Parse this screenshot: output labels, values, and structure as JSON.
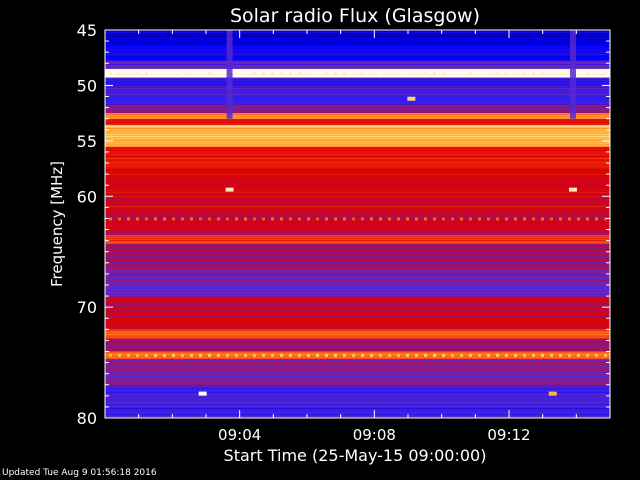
{
  "chart_data": {
    "type": "heatmap",
    "title": "Solar radio Flux (Glasgow)",
    "xlabel": "Start Time (25-May-15 09:00:00)",
    "ylabel": "Frequency [MHz]",
    "x_unit": "minutes after 09:00:00",
    "xlim": [
      0,
      15
    ],
    "ylim": [
      45,
      80
    ],
    "y_inverted": true,
    "xticks": [
      {
        "value": 4,
        "label": "09:04"
      },
      {
        "value": 8,
        "label": "09:08"
      },
      {
        "value": 12,
        "label": "09:12"
      }
    ],
    "yticks": [
      {
        "value": 45,
        "label": "45"
      },
      {
        "value": 50,
        "label": "50"
      },
      {
        "value": 55,
        "label": "55"
      },
      {
        "value": 60,
        "label": "60"
      },
      {
        "value": 70,
        "label": "70"
      },
      {
        "value": 80,
        "label": "80"
      }
    ],
    "colormap": [
      "#00007a",
      "#0000ff",
      "#5a2ad0",
      "#a01060",
      "#e00000",
      "#ff5a1a",
      "#ffc040",
      "#ffffff"
    ],
    "background_level": 0.45,
    "frequency_bands": [
      {
        "from": 45.0,
        "to": 46.5,
        "level": 0.1
      },
      {
        "from": 46.5,
        "to": 47.8,
        "level": 0.16
      },
      {
        "from": 47.8,
        "to": 48.5,
        "level": 0.3
      },
      {
        "from": 48.5,
        "to": 49.3,
        "level": 1.0
      },
      {
        "from": 49.3,
        "to": 50.2,
        "level": 0.2
      },
      {
        "from": 50.2,
        "to": 51.7,
        "level": 0.25
      },
      {
        "from": 51.7,
        "to": 52.5,
        "level": 0.35
      },
      {
        "from": 52.5,
        "to": 53.0,
        "level": 0.8
      },
      {
        "from": 53.0,
        "to": 53.5,
        "level": 0.6
      },
      {
        "from": 53.5,
        "to": 55.5,
        "level": 0.85
      },
      {
        "from": 55.5,
        "to": 57.5,
        "level": 0.6
      },
      {
        "from": 57.5,
        "to": 61.5,
        "level": 0.55
      },
      {
        "from": 61.5,
        "to": 63.5,
        "level": 0.48
      },
      {
        "from": 63.5,
        "to": 64.3,
        "level": 0.68
      },
      {
        "from": 64.3,
        "to": 66.5,
        "level": 0.42
      },
      {
        "from": 66.5,
        "to": 69.0,
        "level": 0.32
      },
      {
        "from": 69.0,
        "to": 72.0,
        "level": 0.5
      },
      {
        "from": 72.0,
        "to": 72.8,
        "level": 0.7
      },
      {
        "from": 72.8,
        "to": 74.0,
        "level": 0.4
      },
      {
        "from": 74.0,
        "to": 74.7,
        "level": 0.74
      },
      {
        "from": 74.7,
        "to": 77.0,
        "level": 0.34
      },
      {
        "from": 77.0,
        "to": 80.0,
        "level": 0.25
      }
    ],
    "time_events": [
      {
        "t": 3.7,
        "from": 45,
        "to": 53,
        "level": 0.28
      },
      {
        "t": 13.9,
        "from": 45,
        "to": 53,
        "level": 0.28
      }
    ],
    "hotspots": [
      {
        "t": 3.7,
        "f": 59.4,
        "level": 0.95
      },
      {
        "t": 13.9,
        "f": 59.4,
        "level": 0.95
      },
      {
        "t": 9.1,
        "f": 51.2,
        "level": 0.9
      },
      {
        "t": 2.9,
        "f": 77.8,
        "level": 1.0
      },
      {
        "t": 13.3,
        "f": 77.8,
        "level": 0.85
      }
    ]
  },
  "footer": {
    "updated": "Updated Tue Aug  9 01:56:18 2016"
  }
}
